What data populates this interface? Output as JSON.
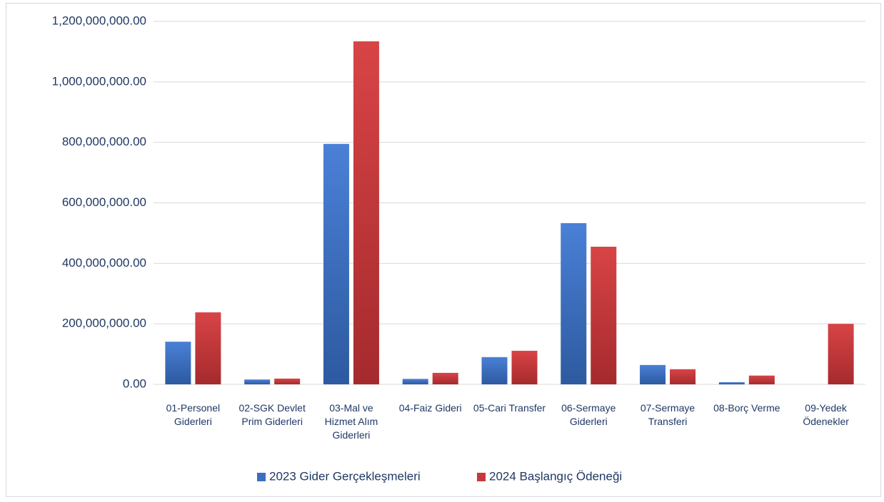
{
  "chart_data": {
    "type": "bar",
    "categories": [
      "01-Personel Giderleri",
      "02-SGK Devlet Prim Giderleri",
      "03-Mal ve Hizmet Alım Giderleri",
      "04-Faiz Gideri",
      "05-Cari Transfer",
      "06-Sermaye Giderleri",
      "07-Sermaye Transferi",
      "08-Borç Verme",
      "09-Yedek Ödenekler"
    ],
    "series": [
      {
        "name": "2023 Gider Gerçekleşmeleri",
        "color": "#3b6fc2",
        "values": [
          141000000,
          16000000,
          795000000,
          18000000,
          90000000,
          533000000,
          64000000,
          7000000,
          0
        ]
      },
      {
        "name": "2024 Başlangıç Ödeneği",
        "color": "#c4393b",
        "values": [
          238000000,
          19000000,
          1134000000,
          38000000,
          111000000,
          455000000,
          50000000,
          29000000,
          200000000
        ]
      }
    ],
    "ylim": [
      0,
      1200000000
    ],
    "yticks": [
      {
        "value": 0,
        "label": "0.00"
      },
      {
        "value": 200000000,
        "label": "200,000,000.00"
      },
      {
        "value": 400000000,
        "label": "400,000,000.00"
      },
      {
        "value": 600000000,
        "label": "600,000,000.00"
      },
      {
        "value": 800000000,
        "label": "800,000,000.00"
      },
      {
        "value": 1000000000,
        "label": "1,000,000,000.00"
      },
      {
        "value": 1200000000,
        "label": "1,200,000,000.00"
      }
    ],
    "grid": true,
    "legend": "bottom"
  }
}
